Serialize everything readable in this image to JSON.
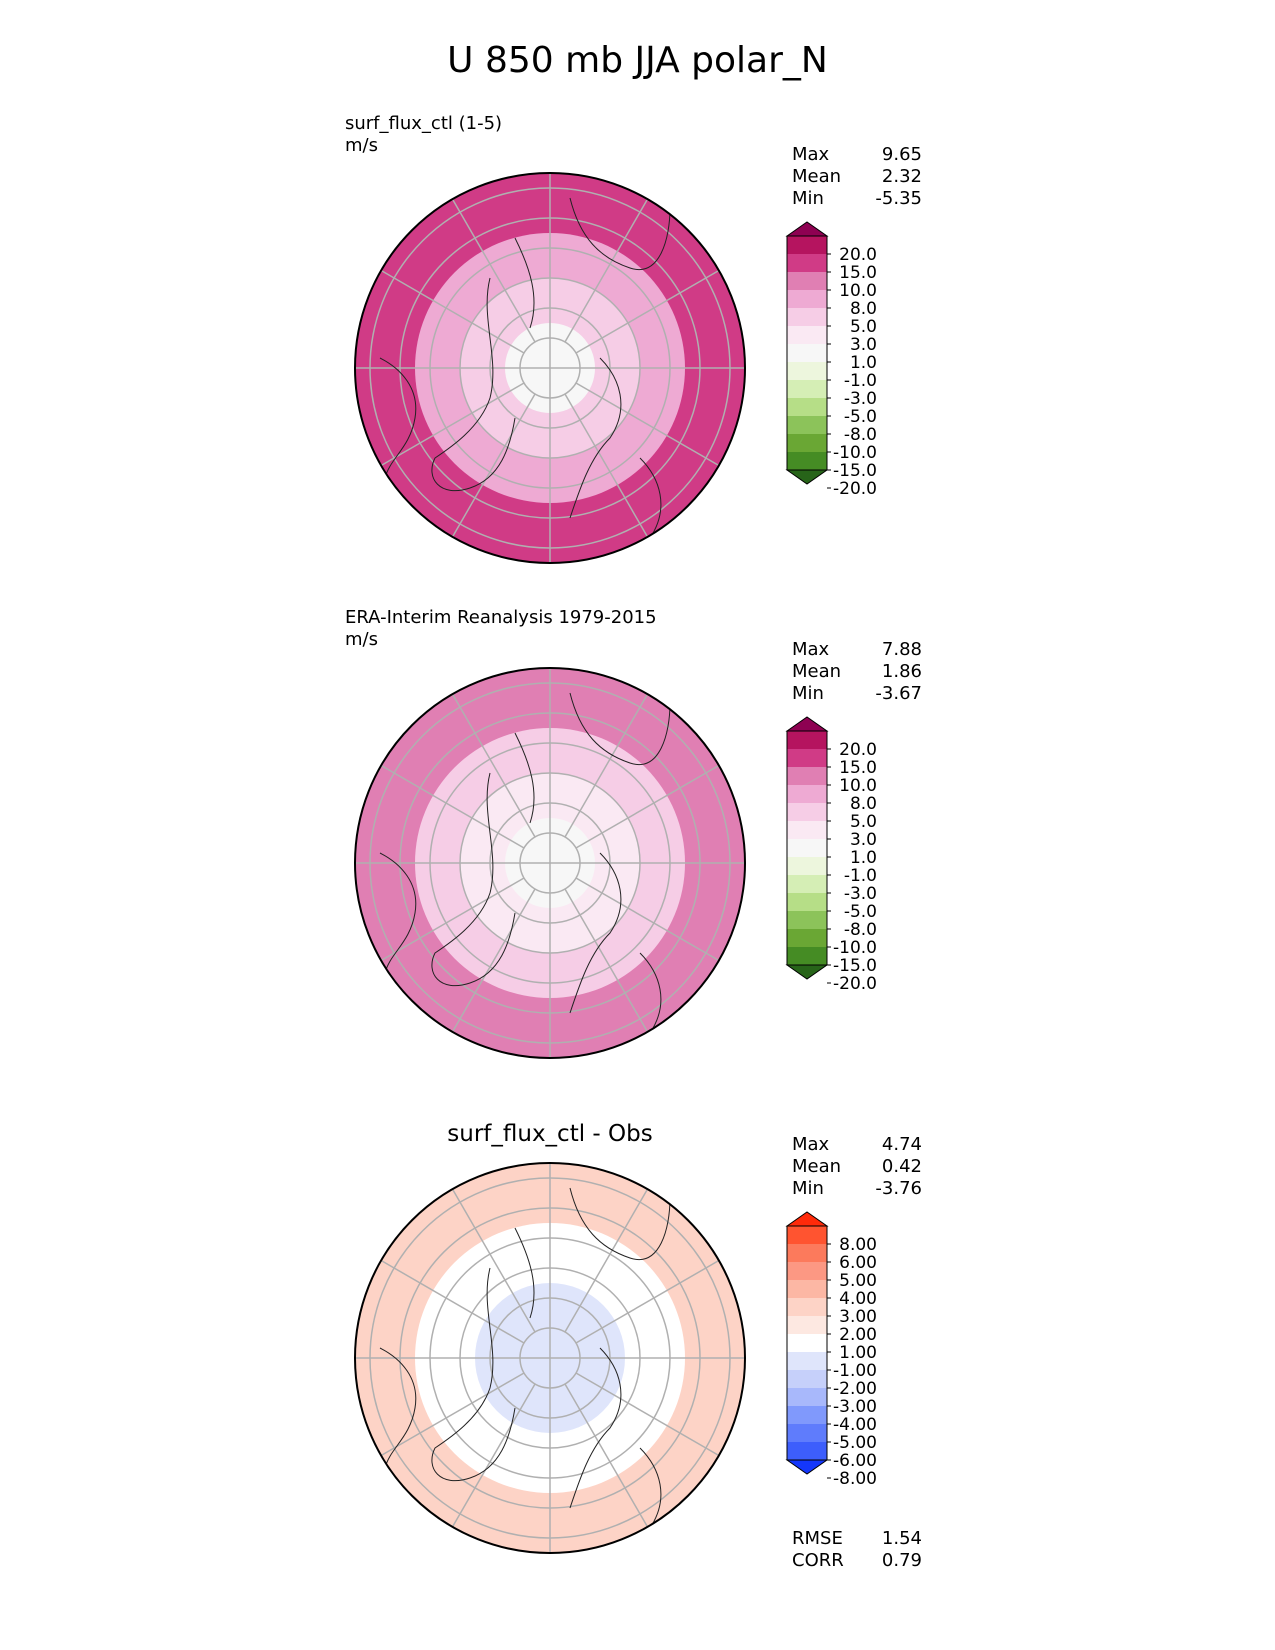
{
  "title": "U 850 mb JJA polar_N",
  "chart_data": [
    {
      "type": "heatmap",
      "projection": "north-polar-stereographic",
      "title": "surf_flux_ctl (1-5)",
      "units": "m/s",
      "stats": {
        "Max": "9.65",
        "Mean": "2.32",
        "Min": "-5.35"
      },
      "colorbar": {
        "levels": [
          "20.0",
          "15.0",
          "10.0",
          "8.0",
          "5.0",
          "3.0",
          "1.0",
          "-1.0",
          "-3.0",
          "-5.0",
          "-8.0",
          "-10.0",
          "-15.0",
          "-20.0"
        ],
        "colors": [
          "#8e0152",
          "#b5145f",
          "#d03b86",
          "#e07fb3",
          "#eeaad3",
          "#f6cde6",
          "#fae9f3",
          "#f7f7f7",
          "#edf6dd",
          "#d5eeb5",
          "#b6de87",
          "#8cc35a",
          "#6aa734",
          "#458c24",
          "#276419"
        ]
      },
      "field_regions": [
        {
          "band_lat": [
            45,
            25
          ],
          "value": 10.0
        },
        {
          "band_lat": [
            60,
            45
          ],
          "value": 5.0
        },
        {
          "band_lat": [
            75,
            60
          ],
          "value": 3.0
        },
        {
          "band_lat": [
            90,
            75
          ],
          "value": 0.0
        }
      ]
    },
    {
      "type": "heatmap",
      "projection": "north-polar-stereographic",
      "title": "ERA-Interim Reanalysis 1979-2015",
      "units": "m/s",
      "stats": {
        "Max": "7.88",
        "Mean": "1.86",
        "Min": "-3.67"
      },
      "colorbar": {
        "levels": [
          "20.0",
          "15.0",
          "10.0",
          "8.0",
          "5.0",
          "3.0",
          "1.0",
          "-1.0",
          "-3.0",
          "-5.0",
          "-8.0",
          "-10.0",
          "-15.0",
          "-20.0"
        ],
        "colors": [
          "#8e0152",
          "#b5145f",
          "#d03b86",
          "#e07fb3",
          "#eeaad3",
          "#f6cde6",
          "#fae9f3",
          "#f7f7f7",
          "#edf6dd",
          "#d5eeb5",
          "#b6de87",
          "#8cc35a",
          "#6aa734",
          "#458c24",
          "#276419"
        ]
      },
      "field_regions": [
        {
          "band_lat": [
            45,
            25
          ],
          "value": 8.0
        },
        {
          "band_lat": [
            60,
            45
          ],
          "value": 3.0
        },
        {
          "band_lat": [
            75,
            60
          ],
          "value": 2.0
        },
        {
          "band_lat": [
            90,
            75
          ],
          "value": 0.0
        }
      ]
    },
    {
      "type": "heatmap",
      "projection": "north-polar-stereographic",
      "title": "surf_flux_ctl - Obs",
      "units": "",
      "stats": {
        "Max": "4.74",
        "Mean": "0.42",
        "Min": "-3.76"
      },
      "metrics": {
        "RMSE": "1.54",
        "CORR": "0.79"
      },
      "colorbar": {
        "levels": [
          "8.00",
          "6.00",
          "5.00",
          "4.00",
          "3.00",
          "2.00",
          "1.00",
          "-1.00",
          "-2.00",
          "-3.00",
          "-4.00",
          "-5.00",
          "-6.00",
          "-8.00"
        ],
        "colors": [
          "#ff2a0a",
          "#ff5430",
          "#fc7a5c",
          "#fc9883",
          "#fcb7a4",
          "#fdd3c6",
          "#fde8e1",
          "#ffffff",
          "#dfe5fb",
          "#c6d0fa",
          "#a8b8fb",
          "#8099fc",
          "#5f7cfc",
          "#3d5efc",
          "#1437fb"
        ]
      },
      "field_regions": [
        {
          "band_lat": [
            45,
            25
          ],
          "value": 2.0
        },
        {
          "band_lat": [
            65,
            45
          ],
          "value": 0.0
        },
        {
          "band_lat": [
            85,
            65
          ],
          "value": -1.5
        }
      ]
    }
  ]
}
